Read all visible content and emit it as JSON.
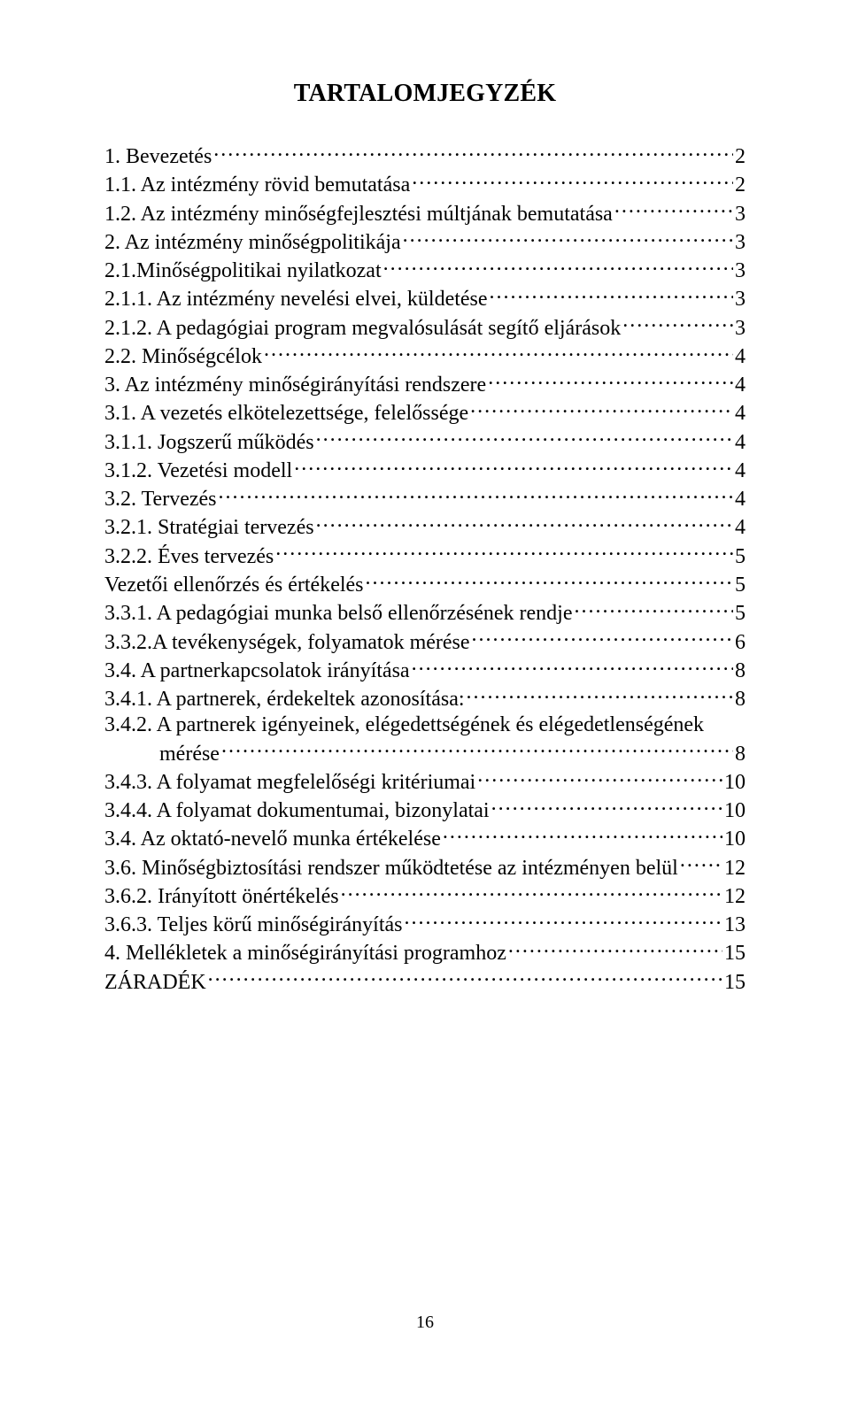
{
  "title": "TARTALOMJEGYZÉK",
  "page_number": "16",
  "toc": [
    {
      "label": "1. Bevezetés",
      "page": "2",
      "indent": false
    },
    {
      "label": "1.1. Az intézmény rövid bemutatása",
      "page": "2",
      "indent": false
    },
    {
      "label": "1.2. Az intézmény minőségfejlesztési múltjának bemutatása",
      "page": "3",
      "indent": false
    },
    {
      "label": "2. Az intézmény minőségpolitikája",
      "page": "3",
      "indent": false
    },
    {
      "label": "2.1.Minőségpolitikai nyilatkozat",
      "page": "3",
      "indent": false
    },
    {
      "label": "2.1.1. Az intézmény nevelési elvei, küldetése",
      "page": "3",
      "indent": false
    },
    {
      "label": "2.1.2. A pedagógiai program megvalósulását segítő eljárások",
      "page": "3",
      "indent": false
    },
    {
      "label": "2.2. Minőségcélok",
      "page": "4",
      "indent": false
    },
    {
      "label": "3. Az intézmény minőségirányítási rendszere",
      "page": "4",
      "indent": false
    },
    {
      "label": "3.1. A vezetés elkötelezettsége, felelőssége",
      "page": "4",
      "indent": false
    },
    {
      "label": "3.1.1. Jogszerű működés",
      "page": "4",
      "indent": false
    },
    {
      "label": "3.1.2. Vezetési modell",
      "page": "4",
      "indent": false
    },
    {
      "label": "3.2. Tervezés",
      "page": "4",
      "indent": false
    },
    {
      "label": "3.2.1. Stratégiai tervezés",
      "page": "4",
      "indent": false
    },
    {
      "label": "3.2.2. Éves tervezés",
      "page": "5",
      "indent": false
    },
    {
      "label": "Vezetői ellenőrzés és értékelés",
      "page": "5",
      "indent": false
    },
    {
      "label": "3.3.1. A pedagógiai munka belső ellenőrzésének rendje",
      "page": "5",
      "indent": false
    },
    {
      "label": "3.3.2.A tevékenységek, folyamatok mérése",
      "page": "6",
      "indent": false
    },
    {
      "label": "3.4. A partnerkapcsolatok irányítása",
      "page": "8",
      "indent": false
    },
    {
      "label": "3.4.1. A partnerek, érdekeltek azonosítása:",
      "page": "8",
      "indent": false
    },
    {
      "label": "3.4.2. A partnerek igényeinek, elégedettségének és  elégedetlenségének",
      "page": null,
      "indent": false
    },
    {
      "label": "mérése",
      "page": "8",
      "indent": true
    },
    {
      "label": "3.4.3. A folyamat megfelelőségi kritériumai",
      "page": "10",
      "indent": false
    },
    {
      "label": "3.4.4. A folyamat dokumentumai, bizonylatai",
      "page": "10",
      "indent": false
    },
    {
      "label": "3.4.   Az oktató-nevelő munka értékelése",
      "page": "10",
      "indent": false
    },
    {
      "label": "3.6. Minőségbiztosítási rendszer működtetése az intézményen belül",
      "page": "12",
      "indent": false
    },
    {
      "label": "3.6.2. Irányított önértékelés",
      "page": "12",
      "indent": false
    },
    {
      "label": "3.6.3. Teljes körű minőségirányítás",
      "page": "13",
      "indent": false
    },
    {
      "label": "4. Mellékletek a minőségirányítási programhoz",
      "page": "15",
      "indent": false
    },
    {
      "label": "ZÁRADÉK",
      "page": "15",
      "indent": false
    }
  ]
}
